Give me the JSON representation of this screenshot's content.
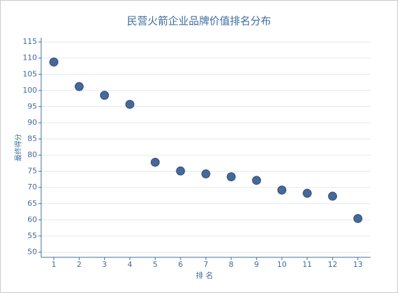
{
  "chart_data": {
    "type": "scatter",
    "title": "民营火箭企业品牌价值排名分布",
    "xlabel": "排 名",
    "ylabel": "最终得分",
    "x": [
      1,
      2,
      3,
      4,
      5,
      6,
      7,
      8,
      9,
      10,
      11,
      12,
      13
    ],
    "values": [
      108.8,
      101.2,
      98.5,
      95.7,
      77.8,
      75.1,
      74.2,
      73.3,
      72.2,
      69.2,
      68.2,
      67.3,
      60.4
    ],
    "color": "#46699a",
    "xlim": [
      0.5,
      13.5
    ],
    "xticks": [
      1,
      2,
      3,
      4,
      5,
      6,
      7,
      8,
      9,
      10,
      11,
      12,
      13
    ],
    "ylim": [
      48.4,
      116.3
    ],
    "yticks": [
      50,
      55,
      60,
      65,
      70,
      75,
      80,
      85,
      90,
      95,
      100,
      105,
      110,
      115
    ],
    "grid": true
  }
}
